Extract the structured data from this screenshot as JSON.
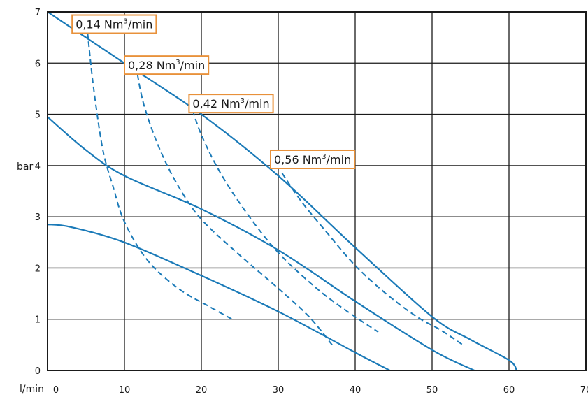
{
  "chart_data": {
    "type": "line",
    "title": "",
    "xlabel": "l/min",
    "ylabel": "bar",
    "xlim": [
      0,
      70
    ],
    "ylim": [
      0,
      7
    ],
    "x_ticks": [
      "0",
      "10",
      "20",
      "30",
      "40",
      "50",
      "60",
      "70"
    ],
    "y_ticks": [
      "0",
      "1",
      "2",
      "3",
      "4",
      "5",
      "6",
      "7"
    ],
    "grid": true,
    "colors": {
      "curve": "#1a7ab8",
      "label_border": "#e8913a",
      "grid": "#1a1a1a",
      "background": "#ffffff"
    },
    "performance_curves": [
      {
        "style": "solid",
        "points": [
          [
            0,
            7.0
          ],
          [
            10,
            6.0
          ],
          [
            20,
            5.0
          ],
          [
            30,
            3.8
          ],
          [
            40,
            2.4
          ],
          [
            50,
            1.05
          ],
          [
            55,
            0.6
          ],
          [
            60,
            0.2
          ],
          [
            61,
            0.0
          ]
        ]
      },
      {
        "style": "solid",
        "points": [
          [
            0,
            4.95
          ],
          [
            5,
            4.3
          ],
          [
            10,
            3.8
          ],
          [
            20,
            3.15
          ],
          [
            30,
            2.35
          ],
          [
            40,
            1.35
          ],
          [
            50,
            0.4
          ],
          [
            55.5,
            0.0
          ]
        ]
      },
      {
        "style": "solid",
        "points": [
          [
            0,
            2.85
          ],
          [
            3,
            2.8
          ],
          [
            10,
            2.5
          ],
          [
            20,
            1.85
          ],
          [
            30,
            1.15
          ],
          [
            40,
            0.35
          ],
          [
            44.5,
            0.0
          ]
        ]
      }
    ],
    "air_consumption_curves": [
      {
        "label_main": "0,14 Nm",
        "label_sup": "3",
        "label_tail": "/min",
        "style": "dashed",
        "points": [
          [
            5.2,
            6.6
          ],
          [
            6.0,
            5.5
          ],
          [
            7.2,
            4.3
          ],
          [
            8.5,
            3.6
          ],
          [
            10.0,
            2.9
          ],
          [
            13.0,
            2.15
          ],
          [
            17.0,
            1.6
          ],
          [
            21.0,
            1.25
          ],
          [
            24.0,
            1.0
          ]
        ]
      },
      {
        "label_main": "0,28 Nm",
        "label_sup": "3",
        "label_tail": "/min",
        "style": "dashed",
        "points": [
          [
            11.5,
            5.95
          ],
          [
            12.5,
            5.2
          ],
          [
            14.5,
            4.35
          ],
          [
            17.0,
            3.6
          ],
          [
            20.0,
            2.95
          ],
          [
            25.0,
            2.25
          ],
          [
            30.0,
            1.6
          ],
          [
            34.0,
            1.05
          ],
          [
            37.0,
            0.5
          ]
        ]
      },
      {
        "label_main": "0,42 Nm",
        "label_sup": "3",
        "label_tail": "/min",
        "style": "dashed",
        "points": [
          [
            18.5,
            5.25
          ],
          [
            20.0,
            4.6
          ],
          [
            22.5,
            3.85
          ],
          [
            26.0,
            3.05
          ],
          [
            30.0,
            2.3
          ],
          [
            35.0,
            1.6
          ],
          [
            39.0,
            1.15
          ],
          [
            43.0,
            0.75
          ]
        ]
      },
      {
        "label_main": "0,56 Nm",
        "label_sup": "3",
        "label_tail": "/min",
        "style": "dashed",
        "points": [
          [
            30.5,
            3.85
          ],
          [
            33.0,
            3.3
          ],
          [
            36.0,
            2.75
          ],
          [
            40.0,
            2.05
          ],
          [
            44.0,
            1.5
          ],
          [
            48.0,
            1.05
          ],
          [
            51.0,
            0.8
          ],
          [
            54.0,
            0.5
          ]
        ]
      }
    ]
  }
}
